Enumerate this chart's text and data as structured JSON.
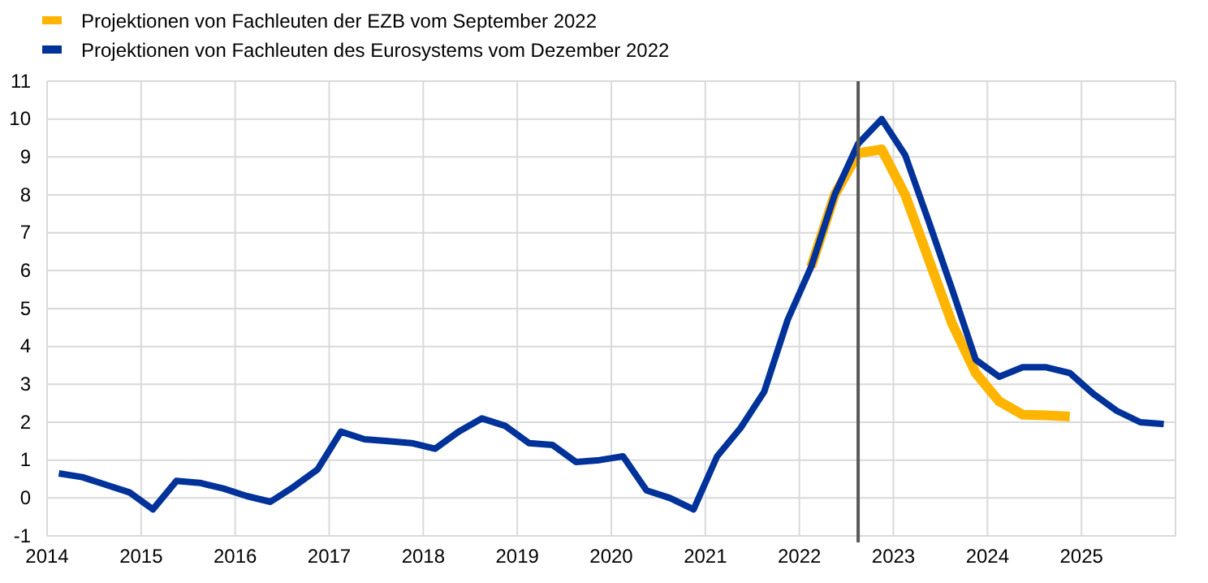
{
  "chart_data": {
    "type": "line",
    "xlim": [
      2014,
      2026
    ],
    "xticks": [
      2014,
      2015,
      2016,
      2017,
      2018,
      2019,
      2020,
      2021,
      2022,
      2023,
      2024,
      2025,
      {
        "value": 2026,
        "label": null
      }
    ],
    "ylim": [
      -1,
      11
    ],
    "yticks": [
      -1,
      0,
      1,
      2,
      3,
      4,
      5,
      6,
      7,
      8,
      9,
      10,
      11
    ],
    "grid": true,
    "legend": "top left",
    "line_style": "solid",
    "ref_lines": [
      {
        "axis": "x",
        "value": 2022.625,
        "label": null,
        "color": "#595959"
      }
    ],
    "series": [
      {
        "name": "Projektionen von Fachleuten der EZB vom September 2022",
        "color": "#ffb400",
        "x": [
          2022.125,
          2022.375,
          2022.625,
          2022.875,
          2023.125,
          2023.375,
          2023.625,
          2023.875,
          2024.125,
          2024.375,
          2024.625,
          2024.875
        ],
        "values": [
          6.1,
          8.0,
          9.1,
          9.2,
          8.0,
          6.3,
          4.6,
          3.3,
          2.55,
          2.2,
          2.18,
          2.15
        ]
      },
      {
        "name": "Projektionen von Fachleuten des Eurosystems vom Dezember 2022",
        "color": "#003299",
        "x": [
          2014.125,
          2014.375,
          2014.625,
          2014.875,
          2015.125,
          2015.375,
          2015.625,
          2015.875,
          2016.125,
          2016.375,
          2016.625,
          2016.875,
          2017.125,
          2017.375,
          2017.625,
          2017.875,
          2018.125,
          2018.375,
          2018.625,
          2018.875,
          2019.125,
          2019.375,
          2019.625,
          2019.875,
          2020.125,
          2020.375,
          2020.625,
          2020.875,
          2021.125,
          2021.375,
          2021.625,
          2021.875,
          2022.125,
          2022.375,
          2022.625,
          2022.875,
          2023.125,
          2023.375,
          2023.625,
          2023.875,
          2024.125,
          2024.375,
          2024.625,
          2024.875,
          2025.125,
          2025.375,
          2025.625,
          2025.875
        ],
        "values": [
          0.65,
          0.55,
          0.35,
          0.15,
          -0.3,
          0.45,
          0.4,
          0.25,
          0.05,
          -0.1,
          0.3,
          0.75,
          1.75,
          1.55,
          1.5,
          1.45,
          1.3,
          1.75,
          2.1,
          1.9,
          1.45,
          1.4,
          0.95,
          1.0,
          1.1,
          0.2,
          0.0,
          -0.3,
          1.1,
          1.85,
          2.8,
          4.7,
          6.1,
          8.0,
          9.35,
          10.0,
          9.05,
          7.3,
          5.5,
          3.65,
          3.2,
          3.45,
          3.45,
          3.3,
          2.75,
          2.3,
          2.0,
          1.95
        ]
      }
    ]
  }
}
